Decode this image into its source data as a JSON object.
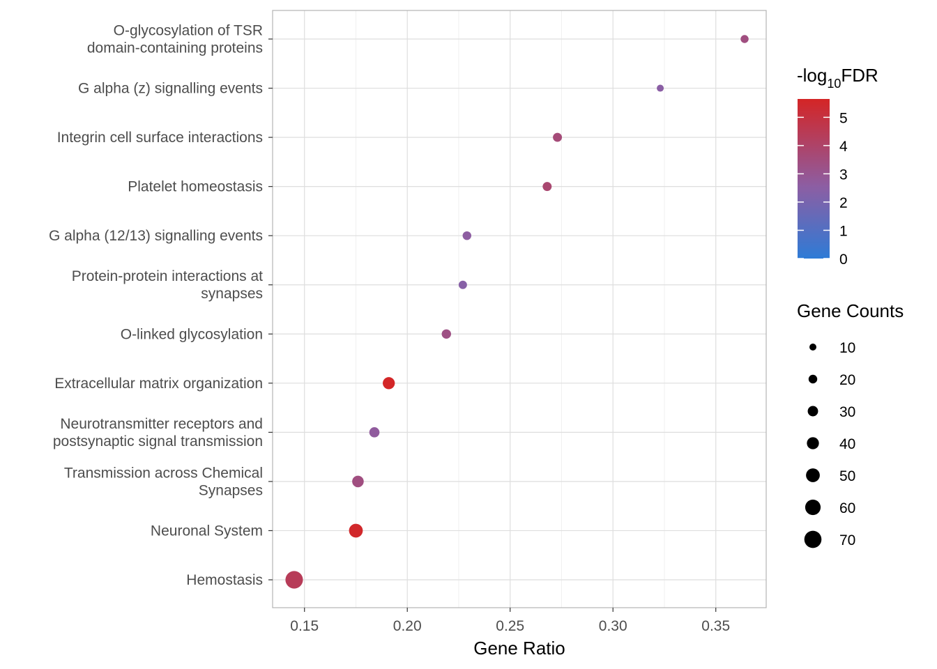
{
  "chart_data": {
    "type": "scatter",
    "xlabel": "Gene Ratio",
    "ylabel": "",
    "xlim": [
      0.1345,
      0.3745
    ],
    "xticks": [
      "0.15",
      "0.20",
      "0.25",
      "0.30",
      "0.35"
    ],
    "xtick_values": [
      0.15,
      0.2,
      0.25,
      0.3,
      0.35
    ],
    "grid": true,
    "legend_position": "right",
    "categories": [
      "O-glycosylation of TSR\ndomain-containing proteins",
      "G alpha (z) signalling events",
      "Integrin cell surface interactions",
      "Platelet homeostasis",
      "G alpha (12/13) signalling events",
      "Protein-protein interactions at\nsynapses",
      "O-linked glycosylation",
      "Extracellular matrix organization",
      "Neurotransmitter receptors and\npostsynaptic signal transmission",
      "Transmission across Chemical\nSynapses",
      "Neuronal System",
      "Hemostasis"
    ],
    "points": [
      {
        "x": 0.364,
        "neg_log10_fdr": 3.4,
        "count": 16
      },
      {
        "x": 0.323,
        "neg_log10_fdr": 2.5,
        "count": 10
      },
      {
        "x": 0.273,
        "neg_log10_fdr": 3.6,
        "count": 22
      },
      {
        "x": 0.268,
        "neg_log10_fdr": 3.8,
        "count": 22
      },
      {
        "x": 0.229,
        "neg_log10_fdr": 2.6,
        "count": 20
      },
      {
        "x": 0.227,
        "neg_log10_fdr": 2.4,
        "count": 18
      },
      {
        "x": 0.219,
        "neg_log10_fdr": 3.3,
        "count": 24
      },
      {
        "x": 0.191,
        "neg_log10_fdr": 5.6,
        "count": 40
      },
      {
        "x": 0.184,
        "neg_log10_fdr": 2.7,
        "count": 29
      },
      {
        "x": 0.176,
        "neg_log10_fdr": 3.4,
        "count": 37
      },
      {
        "x": 0.175,
        "neg_log10_fdr": 5.5,
        "count": 50
      },
      {
        "x": 0.145,
        "neg_log10_fdr": 4.4,
        "count": 72
      }
    ],
    "color_legend": {
      "title": "-log",
      "title_sub": "10",
      "title_suffix": "FDR",
      "min": 0,
      "max": 5.65,
      "ticks": [
        0,
        1,
        2,
        3,
        4,
        5
      ],
      "low_color": "#2e7bd6",
      "mid_color": "#8c5ea3",
      "high_color": "#d42525"
    },
    "size_legend": {
      "title": "Gene Counts",
      "values": [
        10,
        20,
        30,
        40,
        50,
        60,
        70
      ]
    }
  }
}
